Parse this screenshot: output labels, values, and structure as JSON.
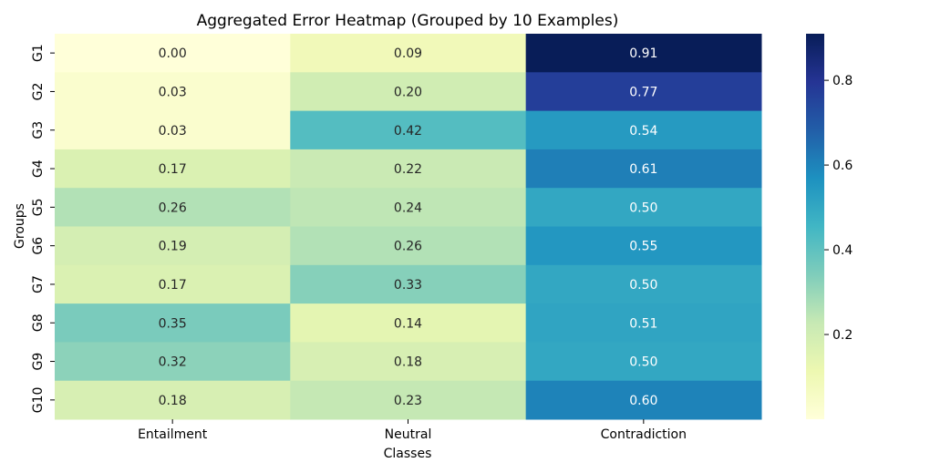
{
  "chart_data": {
    "type": "heatmap",
    "title": "Aggregated Error Heatmap (Grouped by 10 Examples)",
    "xlabel": "Classes",
    "ylabel": "Groups",
    "columns": [
      "Entailment",
      "Neutral",
      "Contradiction"
    ],
    "rows": [
      "G1",
      "G2",
      "G3",
      "G4",
      "G5",
      "G6",
      "G7",
      "G8",
      "G9",
      "G10"
    ],
    "values": [
      [
        0.0,
        0.09,
        0.91
      ],
      [
        0.03,
        0.2,
        0.77
      ],
      [
        0.03,
        0.42,
        0.54
      ],
      [
        0.17,
        0.22,
        0.61
      ],
      [
        0.26,
        0.24,
        0.5
      ],
      [
        0.19,
        0.26,
        0.55
      ],
      [
        0.17,
        0.33,
        0.5
      ],
      [
        0.35,
        0.14,
        0.51
      ],
      [
        0.32,
        0.18,
        0.5
      ],
      [
        0.18,
        0.23,
        0.6
      ]
    ],
    "value_labels": [
      [
        "0.00",
        "0.09",
        "0.91"
      ],
      [
        "0.03",
        "0.20",
        "0.77"
      ],
      [
        "0.03",
        "0.42",
        "0.54"
      ],
      [
        "0.17",
        "0.22",
        "0.61"
      ],
      [
        "0.26",
        "0.24",
        "0.50"
      ],
      [
        "0.19",
        "0.26",
        "0.55"
      ],
      [
        "0.17",
        "0.33",
        "0.50"
      ],
      [
        "0.35",
        "0.14",
        "0.51"
      ],
      [
        "0.32",
        "0.18",
        "0.50"
      ],
      [
        "0.18",
        "0.23",
        "0.60"
      ]
    ],
    "colormap": "YlGnBu",
    "color_range": [
      0.0,
      0.91
    ],
    "colorbar": {
      "ticks": [
        0.2,
        0.4,
        0.6,
        0.8
      ],
      "tick_labels": [
        "0.2",
        "0.4",
        "0.6",
        "0.8"
      ]
    },
    "grid": false,
    "legend": "colorbar-right"
  }
}
